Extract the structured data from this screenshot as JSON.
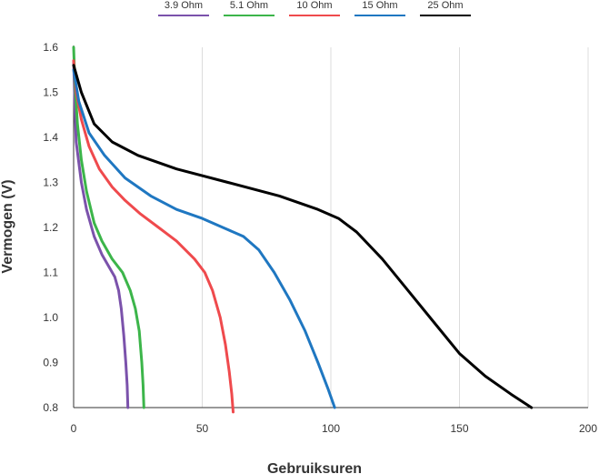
{
  "chart_data": {
    "type": "line",
    "title": "",
    "xlabel": "Gebruiksuren",
    "ylabel": "Vermogen (V)",
    "xlim": [
      0,
      200
    ],
    "ylim": [
      0.8,
      1.6
    ],
    "xticks": [
      "0",
      "50",
      "100",
      "150",
      "200"
    ],
    "xtick_values": [
      0,
      50,
      100,
      150,
      200
    ],
    "yticks": [
      "1.6",
      "1.5",
      "1.4",
      "1.3",
      "1.2",
      "1.1",
      "1.0",
      "0.9",
      "0.8"
    ],
    "ytick_values": [
      1.6,
      1.5,
      1.4,
      1.3,
      1.2,
      1.1,
      1.0,
      0.9,
      0.8
    ],
    "grid": {
      "vertical": true,
      "horizontal": false
    },
    "legend_position": "top",
    "series": [
      {
        "name": "3.9 Ohm",
        "color": "#7b52ab",
        "points": [
          [
            0,
            1.57
          ],
          [
            0.5,
            1.47
          ],
          [
            1,
            1.39
          ],
          [
            3,
            1.3
          ],
          [
            5,
            1.24
          ],
          [
            8,
            1.18
          ],
          [
            11,
            1.14
          ],
          [
            14,
            1.11
          ],
          [
            16,
            1.09
          ],
          [
            17.5,
            1.06
          ],
          [
            18.5,
            1.02
          ],
          [
            19.5,
            0.96
          ],
          [
            20.3,
            0.9
          ],
          [
            20.8,
            0.85
          ],
          [
            21.1,
            0.8
          ]
        ]
      },
      {
        "name": "5.1 Ohm",
        "color": "#3cb54a",
        "points": [
          [
            0,
            1.6
          ],
          [
            0.5,
            1.52
          ],
          [
            1.5,
            1.43
          ],
          [
            3,
            1.35
          ],
          [
            5,
            1.28
          ],
          [
            8,
            1.21
          ],
          [
            11,
            1.17
          ],
          [
            15,
            1.13
          ],
          [
            19,
            1.1
          ],
          [
            22,
            1.06
          ],
          [
            24,
            1.02
          ],
          [
            25.5,
            0.97
          ],
          [
            26.5,
            0.9
          ],
          [
            27,
            0.85
          ],
          [
            27.3,
            0.8
          ]
        ]
      },
      {
        "name": "10 Ohm",
        "color": "#ef4a4d",
        "points": [
          [
            0,
            1.57
          ],
          [
            1,
            1.5
          ],
          [
            3,
            1.44
          ],
          [
            6,
            1.38
          ],
          [
            10,
            1.33
          ],
          [
            15,
            1.29
          ],
          [
            20,
            1.26
          ],
          [
            26,
            1.23
          ],
          [
            33,
            1.2
          ],
          [
            40,
            1.17
          ],
          [
            47,
            1.13
          ],
          [
            51,
            1.1
          ],
          [
            54,
            1.06
          ],
          [
            57,
            1.0
          ],
          [
            59,
            0.94
          ],
          [
            60.5,
            0.88
          ],
          [
            61.5,
            0.83
          ],
          [
            62,
            0.79
          ]
        ]
      },
      {
        "name": "15 Ohm",
        "color": "#1f77c1",
        "points": [
          [
            0,
            1.55
          ],
          [
            2,
            1.48
          ],
          [
            6,
            1.41
          ],
          [
            12,
            1.36
          ],
          [
            20,
            1.31
          ],
          [
            30,
            1.27
          ],
          [
            40,
            1.24
          ],
          [
            50,
            1.22
          ],
          [
            58,
            1.2
          ],
          [
            66,
            1.18
          ],
          [
            72,
            1.15
          ],
          [
            78,
            1.1
          ],
          [
            84,
            1.04
          ],
          [
            90,
            0.97
          ],
          [
            95,
            0.9
          ],
          [
            99,
            0.84
          ],
          [
            101.5,
            0.8
          ]
        ]
      },
      {
        "name": "25 Ohm",
        "color": "#000000",
        "points": [
          [
            0,
            1.56
          ],
          [
            3,
            1.5
          ],
          [
            8,
            1.43
          ],
          [
            15,
            1.39
          ],
          [
            25,
            1.36
          ],
          [
            40,
            1.33
          ],
          [
            60,
            1.3
          ],
          [
            80,
            1.27
          ],
          [
            95,
            1.24
          ],
          [
            103,
            1.22
          ],
          [
            110,
            1.19
          ],
          [
            120,
            1.13
          ],
          [
            130,
            1.06
          ],
          [
            140,
            0.99
          ],
          [
            150,
            0.92
          ],
          [
            160,
            0.87
          ],
          [
            170,
            0.83
          ],
          [
            178,
            0.8
          ]
        ]
      }
    ]
  }
}
